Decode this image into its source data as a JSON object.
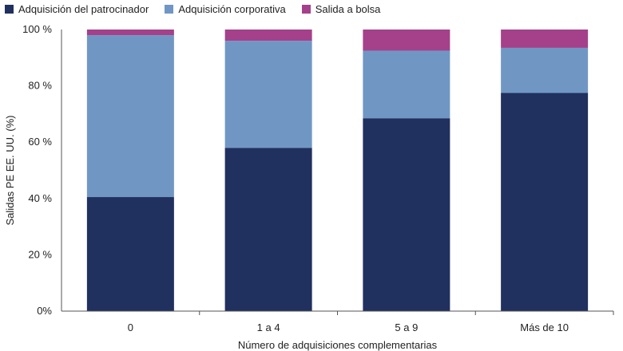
{
  "chart_data": {
    "type": "bar",
    "stacked": true,
    "categories": [
      "0",
      "1 a 4",
      "5 a 9",
      "Más de 10"
    ],
    "series": [
      {
        "name": "Adquisición del patrocinador",
        "values": [
          40.5,
          58,
          68.5,
          77.5
        ],
        "color": "#20305f"
      },
      {
        "name": "Adquisición corporativa",
        "values": [
          57.5,
          38,
          24,
          16
        ],
        "color": "#7097c4"
      },
      {
        "name": "Salida a bolsa",
        "values": [
          2,
          4,
          7.5,
          6.5
        ],
        "color": "#a4418a"
      }
    ],
    "xlabel": "Número de adquisiciones complementarias",
    "ylabel": "Salidas PE EE. UU. (%)",
    "ylim": [
      0,
      100
    ],
    "yticks": [
      {
        "value": 0,
        "label": "0%"
      },
      {
        "value": 20,
        "label": "20 %"
      },
      {
        "value": 40,
        "label": "40 %"
      },
      {
        "value": 60,
        "label": "60 %"
      },
      {
        "value": 80,
        "label": "80 %"
      },
      {
        "value": 100,
        "label": "100 %"
      }
    ],
    "legend_position": "top-left",
    "grid": false
  }
}
